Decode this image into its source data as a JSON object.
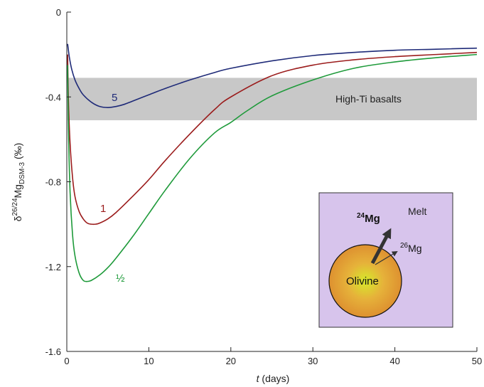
{
  "chart_data": {
    "type": "line",
    "xlabel": {
      "italic": "t",
      "rest": " (days)"
    },
    "ylabel": {
      "delta": "δ",
      "sup": "26/24",
      "base": "Mg",
      "sub": "DSM-3",
      "unit": " (‰)"
    },
    "xlim": [
      0,
      50
    ],
    "ylim": [
      -1.6,
      0
    ],
    "x_ticks": [
      "0",
      "10",
      "20",
      "30",
      "40",
      "50"
    ],
    "y_ticks": [
      "0",
      "-0.4",
      "-0.8",
      "-1.2",
      "-1.6"
    ],
    "grid": false,
    "band": {
      "label": "High-Ti basalts",
      "y_range": [
        -0.51,
        -0.31
      ],
      "color": "#c8c8c8"
    },
    "series": [
      {
        "name": "5",
        "color": "#1e2a78",
        "x": [
          0.1,
          0.3,
          0.6,
          1.0,
          1.5,
          2.0,
          3.0,
          4.0,
          5.0,
          6.0,
          7.0,
          8.0,
          10.0,
          12.0,
          15.0,
          18.0,
          20.0,
          25.0,
          30.0,
          35.0,
          40.0,
          45.0,
          50.0
        ],
        "y": [
          -0.15,
          -0.21,
          -0.27,
          -0.32,
          -0.36,
          -0.39,
          -0.425,
          -0.445,
          -0.45,
          -0.445,
          -0.435,
          -0.42,
          -0.39,
          -0.36,
          -0.32,
          -0.285,
          -0.265,
          -0.23,
          -0.205,
          -0.19,
          -0.18,
          -0.175,
          -0.17
        ]
      },
      {
        "name": "1",
        "color": "#9b1c1c",
        "x": [
          0.1,
          0.2,
          0.4,
          0.7,
          1.0,
          1.5,
          2.0,
          2.5,
          3.0,
          3.5,
          4.0,
          5.0,
          6.0,
          8.0,
          10.0,
          12.0,
          15.0,
          18.0,
          20.0,
          25.0,
          30.0,
          35.0,
          40.0,
          45.0,
          50.0
        ],
        "y": [
          -0.2,
          -0.42,
          -0.62,
          -0.78,
          -0.87,
          -0.94,
          -0.975,
          -0.995,
          -1.0,
          -1.0,
          -0.995,
          -0.975,
          -0.945,
          -0.87,
          -0.79,
          -0.7,
          -0.575,
          -0.46,
          -0.4,
          -0.3,
          -0.25,
          -0.225,
          -0.21,
          -0.2,
          -0.19
        ]
      },
      {
        "name": "½",
        "color": "#1e9a3a",
        "x": [
          0.1,
          0.2,
          0.4,
          0.7,
          1.0,
          1.5,
          2.0,
          2.5,
          3.0,
          4.0,
          5.0,
          6.0,
          8.0,
          10.0,
          12.0,
          15.0,
          18.0,
          20.0,
          22.0,
          25.0,
          30.0,
          35.0,
          40.0,
          45.0,
          50.0
        ],
        "y": [
          -0.25,
          -0.55,
          -0.85,
          -1.05,
          -1.15,
          -1.23,
          -1.265,
          -1.27,
          -1.265,
          -1.24,
          -1.205,
          -1.16,
          -1.06,
          -0.95,
          -0.84,
          -0.69,
          -0.57,
          -0.52,
          -0.465,
          -0.395,
          -0.32,
          -0.265,
          -0.235,
          -0.215,
          -0.2
        ]
      }
    ],
    "series_labels": [
      "5",
      "1",
      "½"
    ],
    "inset": {
      "background": "#d7c4ec",
      "melt_label": "Melt",
      "mg24_label": {
        "sup": "24",
        "base": "Mg"
      },
      "mg26_label": {
        "sup": "26",
        "base": "Mg"
      },
      "olivine_label": "Olivine"
    }
  }
}
